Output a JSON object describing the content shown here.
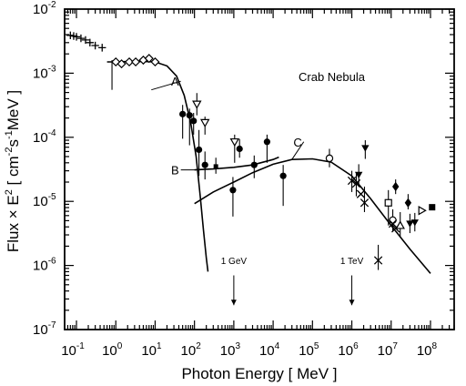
{
  "chart_data": {
    "type": "scatter",
    "title": "",
    "annotation_title": "Crab Nebula",
    "xlabel": "Photon Energy [ MeV ]",
    "ylabel_parts": {
      "prefix": "Flux × E",
      "exp": "2",
      "unit_pre": " [ cm",
      "unit_exp1": "-2",
      "unit_mid": "s",
      "unit_exp2": "-1",
      "unit_post": "MeV ]"
    },
    "xscale": "log",
    "yscale": "log",
    "xlim": [
      0.05,
      400000000
    ],
    "ylim": [
      1e-07,
      0.01
    ],
    "xtick_labels": [
      {
        "base": "10",
        "exp": "-1",
        "value": 0.1
      },
      {
        "base": "10",
        "exp": "0",
        "value": 1
      },
      {
        "base": "10",
        "exp": "1",
        "value": 10
      },
      {
        "base": "10",
        "exp": "2",
        "value": 100
      },
      {
        "base": "10",
        "exp": "3",
        "value": 1000
      },
      {
        "base": "10",
        "exp": "4",
        "value": 10000
      },
      {
        "base": "10",
        "exp": "5",
        "value": 100000
      },
      {
        "base": "10",
        "exp": "6",
        "value": 1000000
      },
      {
        "base": "10",
        "exp": "7",
        "value": 10000000
      },
      {
        "base": "10",
        "exp": "8",
        "value": 100000000
      }
    ],
    "ytick_labels": [
      {
        "base": "10",
        "exp": "-7",
        "value": 1e-07
      },
      {
        "base": "10",
        "exp": "-6",
        "value": 1e-06
      },
      {
        "base": "10",
        "exp": "-5",
        "value": 1e-05
      },
      {
        "base": "10",
        "exp": "-4",
        "value": 0.0001
      },
      {
        "base": "10",
        "exp": "-3",
        "value": 0.001
      },
      {
        "base": "10",
        "exp": "-2",
        "value": 0.01
      }
    ],
    "curve_labels": [
      {
        "name": "A",
        "x": 8,
        "y": 0.00055,
        "tx": 45,
        "ty": 0.00075
      },
      {
        "name": "B",
        "x": 110,
        "y": 3.1e-05,
        "tx": 45,
        "ty": 3.1e-05
      },
      {
        "name": "C",
        "x": 30000,
        "y": 4.5e-05,
        "tx": 60000,
        "ty": 8.5e-05
      }
    ],
    "markers_text": [
      {
        "label": "1 GeV",
        "x": 1000,
        "y_text": 1.05e-06,
        "y_from": 7e-07,
        "y_to": 2.4e-07
      },
      {
        "label": "1 TeV",
        "x": 1000000,
        "y_text": 1.05e-06,
        "y_from": 7e-07,
        "y_to": 2.4e-07
      }
    ],
    "series": [
      {
        "marker": "plus",
        "points": [
          {
            "x": 0.07,
            "y": 0.0039
          },
          {
            "x": 0.085,
            "y": 0.0038
          },
          {
            "x": 0.1,
            "y": 0.0037
          },
          {
            "x": 0.13,
            "y": 0.0035
          },
          {
            "x": 0.17,
            "y": 0.0033
          },
          {
            "x": 0.22,
            "y": 0.003
          },
          {
            "x": 0.3,
            "y": 0.0027
          },
          {
            "x": 0.45,
            "y": 0.0025
          }
        ]
      },
      {
        "marker": "diamond-open",
        "points": [
          {
            "x": 1,
            "y": 0.0015
          },
          {
            "x": 1.4,
            "y": 0.0014
          },
          {
            "x": 2.2,
            "y": 0.0015
          },
          {
            "x": 3.2,
            "y": 0.0015
          },
          {
            "x": 5,
            "y": 0.0016
          },
          {
            "x": 7,
            "y": 0.0017
          },
          {
            "x": 10,
            "y": 0.0015
          }
        ],
        "err": [
          {
            "x": 0.8,
            "lo": 0.00055,
            "hi": 0.0016
          }
        ]
      },
      {
        "marker": "circle-filled",
        "points": [
          {
            "x": 50,
            "y": 0.00023,
            "lo": 9.5e-05,
            "hi": 0.00032
          },
          {
            "x": 75,
            "y": 0.00022,
            "lo": 7.5e-05,
            "hi": 0.00028
          },
          {
            "x": 95,
            "y": 0.00018,
            "lo": 0.00011,
            "hi": 0.00024
          },
          {
            "x": 130,
            "y": 6.4e-05,
            "lo": 2.5e-05,
            "hi": 0.00013
          },
          {
            "x": 185,
            "y": 3.7e-05,
            "lo": 2.2e-05,
            "hi": 6e-05
          },
          {
            "x": 950,
            "y": 1.5e-05,
            "lo": 5.8e-06,
            "hi": 2.4e-05
          },
          {
            "x": 1400,
            "y": 6.6e-05,
            "lo": 4.8e-05,
            "hi": 9.4e-05
          },
          {
            "x": 3300,
            "y": 3.7e-05,
            "lo": 2.3e-05,
            "hi": 5.2e-05
          },
          {
            "x": 7000,
            "y": 8.5e-05,
            "lo": 4e-05,
            "hi": 0.00011
          },
          {
            "x": 18000,
            "y": 2.5e-05,
            "lo": 8.5e-06,
            "hi": 3.7e-05
          }
        ]
      },
      {
        "marker": "triangle-down-open",
        "points": [
          {
            "x": 115,
            "y": 0.00033,
            "lo": 0.00022,
            "hi": 0.00049
          },
          {
            "x": 185,
            "y": 0.00017,
            "lo": 0.00011,
            "hi": 0.00021
          },
          {
            "x": 1050,
            "y": 8.5e-05,
            "lo": 4e-05,
            "hi": 0.00011
          }
        ]
      },
      {
        "marker": "square-filled-small",
        "points": [
          {
            "x": 350,
            "y": 3.5e-05,
            "lo": 2.7e-05,
            "hi": 4.8e-05
          }
        ]
      },
      {
        "marker": "circle-open",
        "points": [
          {
            "x": 270000,
            "y": 4.7e-05,
            "lo": 3.4e-05,
            "hi": 6.6e-05
          },
          {
            "x": 11000000,
            "y": 5.1e-06,
            "lo": 3.4e-06,
            "hi": 7.5e-06
          }
        ]
      },
      {
        "marker": "cross",
        "points": [
          {
            "x": 1000000,
            "y": 2.1e-05
          },
          {
            "x": 1300000,
            "y": 1.9e-05
          },
          {
            "x": 1700000,
            "y": 1.3e-05
          },
          {
            "x": 2100000,
            "y": 9.5e-06
          },
          {
            "x": 4700000,
            "y": 1.2e-06
          },
          {
            "x": 11000000,
            "y": 4.5e-06
          },
          {
            "x": 13000000,
            "y": 3.8e-06
          }
        ],
        "err": [
          {
            "x": 1000000,
            "lo": 1.4e-05,
            "hi": 3e-05
          },
          {
            "x": 1300000,
            "lo": 1.2e-05,
            "hi": 2.8e-05
          },
          {
            "x": 2100000,
            "lo": 6.8e-06,
            "hi": 1.7e-05
          },
          {
            "x": 4700000,
            "lo": 8.5e-07,
            "hi": 2.1e-06
          }
        ]
      },
      {
        "marker": "triangle-down-filled",
        "points": [
          {
            "x": 2200000,
            "y": 6.8e-05,
            "lo": 4.6e-05,
            "hi": 9e-05
          },
          {
            "x": 1500000,
            "y": 2.6e-05,
            "lo": 1.7e-05,
            "hi": 3.8e-05
          },
          {
            "x": 30000000,
            "y": 4.5e-06,
            "lo": 3.2e-06,
            "hi": 6.4e-06
          },
          {
            "x": 40000000,
            "y": 4.7e-06,
            "lo": 3.4e-06,
            "hi": 6.6e-06
          }
        ]
      },
      {
        "marker": "diamond-filled",
        "points": [
          {
            "x": 13000000,
            "y": 1.7e-05,
            "lo": 1.3e-05,
            "hi": 2.2e-05
          },
          {
            "x": 27000000,
            "y": 9.5e-06,
            "lo": 7.5e-06,
            "hi": 1.3e-05
          }
        ]
      },
      {
        "marker": "square-open",
        "points": [
          {
            "x": 8500000,
            "y": 9.5e-06,
            "lo": 4.2e-06,
            "hi": 1.5e-05
          }
        ]
      },
      {
        "marker": "triangle-up-open",
        "points": [
          {
            "x": 17000000,
            "y": 4.2e-06,
            "lo": 2.8e-06,
            "hi": 6.8e-06
          }
        ]
      },
      {
        "marker": "triangle-right-open",
        "points": [
          {
            "x": 60000000,
            "y": 7.2e-06
          }
        ]
      },
      {
        "marker": "square-filled",
        "points": [
          {
            "x": 110000000,
            "y": 8.1e-06
          }
        ]
      }
    ],
    "curves": [
      {
        "name": "A",
        "points": [
          [
            0.6,
            0.0015
          ],
          [
            1,
            0.0015
          ],
          [
            2,
            0.00152
          ],
          [
            5,
            0.00152
          ],
          [
            10,
            0.0015
          ],
          [
            20,
            0.0013
          ],
          [
            35,
            0.0009
          ],
          [
            55,
            0.00045
          ],
          [
            80,
            0.00017
          ],
          [
            110,
            5e-05
          ],
          [
            140,
            1.2e-05
          ],
          [
            170,
            3.5e-06
          ],
          [
            200,
            1.3e-06
          ],
          [
            220,
            8e-07
          ]
        ]
      },
      {
        "name": "B",
        "points": [
          [
            100,
            3.1e-05
          ],
          [
            300,
            3.2e-05
          ],
          [
            1000,
            3.4e-05
          ],
          [
            3000,
            3.7e-05
          ],
          [
            10000,
            4.5e-05
          ],
          [
            14000,
            4.9e-05
          ]
        ]
      },
      {
        "name": "C",
        "points": [
          [
            100,
            9.2e-06
          ],
          [
            300,
            1.4e-05
          ],
          [
            1000,
            2e-05
          ],
          [
            3000,
            2.8e-05
          ],
          [
            10000,
            3.8e-05
          ],
          [
            30000,
            4.5e-05
          ],
          [
            100000,
            4.6e-05
          ],
          [
            300000,
            4.1e-05
          ],
          [
            1000000,
            2.5e-05
          ],
          [
            3000000,
            1.1e-05
          ],
          [
            10000000,
            4.2e-06
          ],
          [
            30000000,
            1.8e-06
          ],
          [
            100000000,
            7.5e-07
          ]
        ]
      }
    ]
  }
}
